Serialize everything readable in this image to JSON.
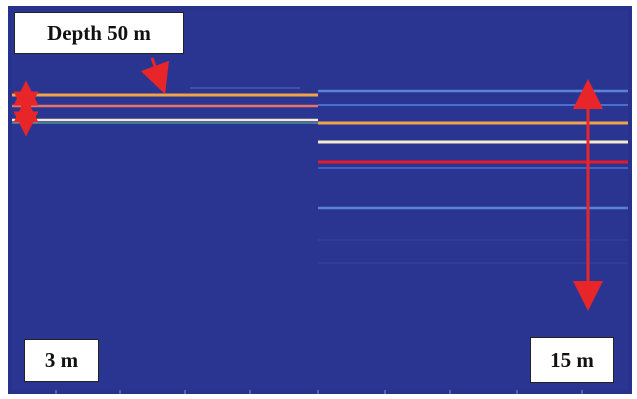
{
  "labels": {
    "depth": "Depth 50 m",
    "left_spacing": "3 m",
    "right_spacing": "15 m"
  },
  "colors": {
    "background": "#2a3592",
    "frame": "#27328d",
    "arrow": "#e8262a",
    "stripe_red": "#e43a35",
    "stripe_orange": "#f0a34a",
    "stripe_pale": "#f4ead0",
    "stripe_light_blue": "#5a82d8"
  },
  "icons": [
    "double-headed-arrow-icon",
    "pointer-arrow-icon"
  ]
}
